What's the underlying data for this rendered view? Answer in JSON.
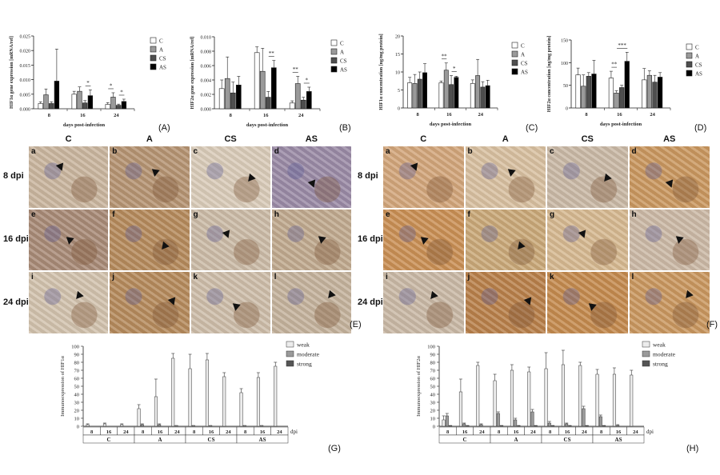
{
  "colors": {
    "C": "#ffffff",
    "A": "#9a9a9a",
    "CS": "#4e4e4e",
    "AS": "#000000",
    "weak": "#ececec",
    "moderate": "#9a9a9a",
    "strong": "#555555"
  },
  "panel_labels": [
    "(A)",
    "(B)",
    "(C)",
    "(D)",
    "(E)",
    "(F)",
    "(G)",
    "(H)"
  ],
  "micro": {
    "col_headers": [
      "C",
      "A",
      "CS",
      "AS"
    ],
    "row_headers": [
      "8 dpi",
      "16 dpi",
      "24 dpi"
    ],
    "cell_letters": [
      "a",
      "b",
      "c",
      "d",
      "e",
      "f",
      "g",
      "h",
      "i",
      "j",
      "k",
      "l"
    ]
  },
  "chart_data": [
    {
      "type": "bar",
      "id": "A",
      "title": "",
      "ylabel": "HIF1α gene expression [mRNA/ref]",
      "xlabel": "days post-infection",
      "categories": [
        "8",
        "16",
        "24"
      ],
      "ylim": [
        0,
        0.025
      ],
      "yticks": [
        "0.000",
        "0.005",
        "0.010",
        "0.015",
        "0.020",
        "0.025"
      ],
      "legend": [
        "C",
        "A",
        "CS",
        "AS"
      ],
      "series": [
        {
          "name": "C",
          "values": [
            0.0018,
            0.005,
            0.0015
          ],
          "err": [
            0.0006,
            0.001,
            0.0006
          ]
        },
        {
          "name": "A",
          "values": [
            0.0048,
            0.006,
            0.004
          ],
          "err": [
            0.002,
            0.0015,
            0.0015
          ]
        },
        {
          "name": "CS",
          "values": [
            0.0018,
            0.002,
            0.0012
          ],
          "err": [
            0.0006,
            0.0008,
            0.0004
          ]
        },
        {
          "name": "AS",
          "values": [
            0.0095,
            0.0045,
            0.0025
          ],
          "err": [
            0.011,
            0.002,
            0.0008
          ]
        }
      ],
      "sig": [
        {
          "g": 1,
          "a": 2,
          "b": 3,
          "t": "*"
        },
        {
          "g": 2,
          "a": 0,
          "b": 1,
          "t": "*"
        },
        {
          "g": 2,
          "a": 2,
          "b": 3,
          "t": "*"
        }
      ]
    },
    {
      "type": "bar",
      "id": "B",
      "title": "",
      "ylabel": "HIF2α gene expression [mRNA/ref]",
      "xlabel": "days post-infection",
      "categories": [
        "8",
        "16",
        "24"
      ],
      "ylim": [
        0,
        0.01
      ],
      "yticks": [
        "0.000",
        "0.002",
        "0.004",
        "0.006",
        "0.008",
        "0.010"
      ],
      "legend": [
        "C",
        "A",
        "CS",
        "AS"
      ],
      "series": [
        {
          "name": "C",
          "values": [
            0.0028,
            0.0078,
            0.0008
          ],
          "err": [
            0.0012,
            0.0008,
            0.0003
          ]
        },
        {
          "name": "A",
          "values": [
            0.0042,
            0.0052,
            0.0035
          ],
          "err": [
            0.003,
            0.0032,
            0.001
          ]
        },
        {
          "name": "CS",
          "values": [
            0.0022,
            0.0016,
            0.0012
          ],
          "err": [
            0.0015,
            0.0008,
            0.0004
          ]
        },
        {
          "name": "AS",
          "values": [
            0.0033,
            0.0057,
            0.0024
          ],
          "err": [
            0.0012,
            0.001,
            0.0006
          ]
        }
      ],
      "sig": [
        {
          "g": 1,
          "a": 2,
          "b": 3,
          "t": "**"
        },
        {
          "g": 2,
          "a": 0,
          "b": 1,
          "t": "**"
        },
        {
          "g": 2,
          "a": 2,
          "b": 3,
          "t": "*"
        }
      ]
    },
    {
      "type": "bar",
      "id": "C",
      "title": "",
      "ylabel": "HIF1α concentration [ng/mg protein]",
      "xlabel": "days post-infection",
      "categories": [
        "8",
        "16",
        "24"
      ],
      "ylim": [
        0,
        20
      ],
      "yticks": [
        "0",
        "5",
        "10",
        "15",
        "20"
      ],
      "legend": [
        "C",
        "A",
        "CS",
        "AS"
      ],
      "series": [
        {
          "name": "C",
          "values": [
            7,
            7,
            6.8
          ],
          "err": [
            1.5,
            0.5,
            1
          ]
        },
        {
          "name": "A",
          "values": [
            6.8,
            10.5,
            9
          ],
          "err": [
            2.5,
            2,
            4.5
          ]
        },
        {
          "name": "CS",
          "values": [
            8,
            6.5,
            5.8
          ],
          "err": [
            2,
            2.5,
            1.5
          ]
        },
        {
          "name": "AS",
          "values": [
            9.8,
            8.5,
            6.2
          ],
          "err": [
            2.5,
            0.3,
            1.5
          ]
        }
      ],
      "sig": [
        {
          "g": 1,
          "a": 0,
          "b": 1,
          "t": "**"
        },
        {
          "g": 1,
          "a": 2,
          "b": 3,
          "t": "*"
        }
      ]
    },
    {
      "type": "bar",
      "id": "D",
      "title": "",
      "ylabel": "HIF2α concentration [ng/mg protein]",
      "xlabel": "days post-infection",
      "categories": [
        "8",
        "16",
        "24"
      ],
      "ylim": [
        0,
        150
      ],
      "yticks": [
        "0",
        "50",
        "100",
        "150"
      ],
      "legend": [
        "C",
        "A",
        "CS",
        "AS"
      ],
      "series": [
        {
          "name": "C",
          "values": [
            73,
            66,
            62
          ],
          "err": [
            15,
            15,
            25
          ]
        },
        {
          "name": "A",
          "values": [
            48,
            33,
            72
          ],
          "err": [
            25,
            5,
            10
          ]
        },
        {
          "name": "CS",
          "values": [
            70,
            45,
            57
          ],
          "err": [
            8,
            5,
            15
          ]
        },
        {
          "name": "AS",
          "values": [
            75,
            103,
            68
          ],
          "err": [
            30,
            20,
            10
          ]
        }
      ],
      "sig": [
        {
          "g": 1,
          "a": 0,
          "b": 1,
          "t": "**"
        },
        {
          "g": 1,
          "a": 1,
          "b": 3,
          "t": "***"
        }
      ]
    },
    {
      "type": "bar",
      "id": "G",
      "title": "",
      "ylabel": "Immunoexpression of HIF1α",
      "xlabel": "dpi",
      "categories": [
        "8",
        "16",
        "24",
        "8",
        "16",
        "24",
        "8",
        "16",
        "24",
        "8",
        "16",
        "24"
      ],
      "groups": [
        "C",
        "A",
        "CS",
        "AS"
      ],
      "ylim": [
        0,
        100
      ],
      "yticks": [
        "0",
        "10",
        "20",
        "30",
        "40",
        "50",
        "60",
        "70",
        "80",
        "90",
        "100"
      ],
      "legend": [
        "weak",
        "moderate",
        "strong"
      ],
      "series": [
        {
          "name": "weak",
          "values": [
            2,
            3,
            2,
            22,
            37,
            85,
            72,
            83,
            62,
            42,
            61,
            75
          ],
          "err": [
            1,
            1,
            1,
            5,
            22,
            6,
            18,
            8,
            5,
            5,
            6,
            5
          ]
        },
        {
          "name": "moderate",
          "values": [
            0,
            0,
            0,
            2,
            2,
            1,
            1,
            1,
            0,
            1,
            1,
            0
          ],
          "err": [
            0,
            0,
            0,
            1,
            1,
            0,
            0,
            0,
            0,
            0,
            0,
            0
          ]
        },
        {
          "name": "strong",
          "values": [
            0,
            0,
            0,
            0,
            0,
            0,
            0,
            0,
            0,
            0,
            0,
            0
          ],
          "err": [
            0,
            0,
            0,
            0,
            0,
            0,
            0,
            0,
            0,
            0,
            0,
            0
          ]
        }
      ]
    },
    {
      "type": "bar",
      "id": "H",
      "title": "",
      "ylabel": "Immunoexpression of HIF2α",
      "xlabel": "dpi",
      "categories": [
        "8",
        "16",
        "24",
        "8",
        "16",
        "24",
        "8",
        "16",
        "24",
        "8",
        "16",
        "24"
      ],
      "groups": [
        "C",
        "A",
        "CS",
        "AS"
      ],
      "ylim": [
        0,
        100
      ],
      "yticks": [
        "0",
        "10",
        "20",
        "30",
        "40",
        "50",
        "60",
        "70",
        "80",
        "90",
        "100"
      ],
      "legend": [
        "weak",
        "moderate",
        "strong"
      ],
      "series": [
        {
          "name": "weak",
          "values": [
            8,
            43,
            76,
            57,
            70,
            68,
            72,
            77,
            76,
            65,
            65,
            64
          ],
          "err": [
            5,
            16,
            4,
            8,
            7,
            6,
            20,
            18,
            4,
            6,
            8,
            6
          ]
        },
        {
          "name": "moderate",
          "values": [
            13,
            3,
            2,
            16,
            8,
            18,
            4,
            3,
            22,
            12,
            1,
            0
          ],
          "err": [
            3,
            1,
            1,
            2,
            2,
            3,
            2,
            1,
            3,
            2,
            1,
            0
          ]
        },
        {
          "name": "strong",
          "values": [
            1,
            1,
            0,
            1,
            1,
            1,
            1,
            1,
            1,
            1,
            0,
            0
          ],
          "err": [
            0,
            0,
            0,
            0,
            0,
            0,
            0,
            0,
            0,
            0,
            0,
            0
          ]
        }
      ]
    }
  ]
}
